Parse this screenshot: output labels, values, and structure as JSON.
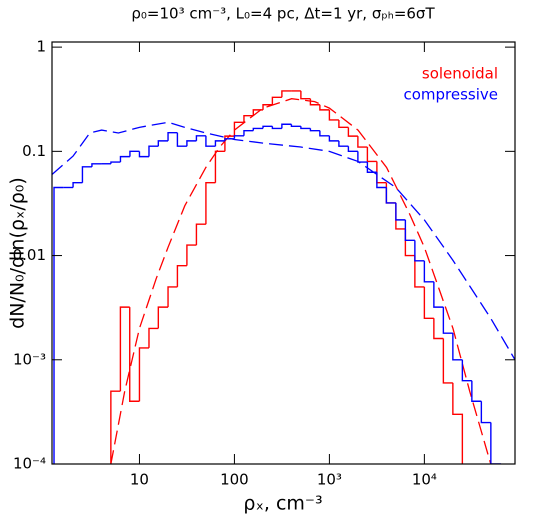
{
  "chart_data": {
    "type": "step-histogram",
    "title": "ρ₀=10³ cm⁻³,  L₀=4 pc,  Δt=1 yr,  σₚₕ=6σT",
    "x_label": "ρₓ, cm⁻³",
    "y_label": "dN/N₀/dln(ρₓ/ρ₀)",
    "log_x": true,
    "log_y": true,
    "xlim": [
      1.2,
      90000
    ],
    "ylim": [
      0.0001,
      1.12
    ],
    "xticks": [
      10,
      100,
      {
        "value": 1000,
        "label": "10³"
      },
      {
        "value": 10000,
        "label": "10⁴"
      }
    ],
    "yticks": [
      {
        "value": 0.0001,
        "label": "10⁻⁴"
      },
      {
        "value": 0.001,
        "label": "10⁻³"
      },
      0.01,
      0.1,
      1
    ],
    "legend": "top-right",
    "series": [
      {
        "name": "solenoidal",
        "color": "#ff0000",
        "bins": [
          5.0,
          6.3,
          7.9,
          10,
          12.6,
          15.8,
          20,
          25.1,
          31.6,
          39.8,
          50.1,
          63.1,
          79.4,
          100,
          126,
          158,
          200,
          251,
          316,
          398,
          501,
          631,
          794,
          1000,
          1259,
          1585,
          1995,
          2512,
          3162,
          3981,
          5012,
          6310,
          7943,
          10000,
          12589,
          15849,
          19953,
          25119
        ],
        "values": [
          0.0005,
          0.0032,
          0.0004,
          0.0013,
          0.002,
          0.0032,
          0.005,
          0.008,
          0.0126,
          0.02,
          0.05,
          0.1,
          0.14,
          0.19,
          0.22,
          0.25,
          0.28,
          0.33,
          0.38,
          0.38,
          0.32,
          0.28,
          0.25,
          0.2,
          0.17,
          0.14,
          0.11,
          0.08,
          0.05,
          0.032,
          0.018,
          0.01,
          0.005,
          0.0025,
          0.0016,
          0.0006,
          0.0003
        ],
        "fit": {
          "x": [
            5,
            7,
            10,
            15,
            20,
            30,
            50,
            70,
            100,
            200,
            400,
            700,
            1000,
            2000,
            4000,
            7000,
            10000,
            20000,
            30000,
            50000
          ],
          "values": [
            0.0001,
            0.0005,
            0.002,
            0.006,
            0.012,
            0.03,
            0.07,
            0.11,
            0.16,
            0.26,
            0.32,
            0.3,
            0.26,
            0.16,
            0.07,
            0.025,
            0.012,
            0.002,
            0.0005,
            0.0001
          ]
        }
      },
      {
        "name": "compressive",
        "color": "#0000ff",
        "bins": [
          1.26,
          1.58,
          2,
          2.51,
          3.16,
          3.98,
          5.01,
          6.31,
          7.94,
          10,
          12.6,
          15.8,
          20,
          25.1,
          31.6,
          39.8,
          50.1,
          63.1,
          79.4,
          100,
          126,
          158,
          200,
          251,
          316,
          398,
          501,
          631,
          794,
          1000,
          1259,
          1585,
          1995,
          2512,
          3162,
          3981,
          5012,
          6310,
          7943,
          10000,
          12589,
          15849,
          19953,
          25119,
          31623,
          39811,
          50119,
          63096
        ],
        "values": [
          0.045,
          0.045,
          0.05,
          0.071,
          0.076,
          0.076,
          0.079,
          0.089,
          0.1,
          0.089,
          0.112,
          0.126,
          0.151,
          0.112,
          0.126,
          0.141,
          0.112,
          0.126,
          0.132,
          0.141,
          0.158,
          0.166,
          0.174,
          0.166,
          0.182,
          0.174,
          0.166,
          0.158,
          0.141,
          0.126,
          0.112,
          0.1,
          0.079,
          0.063,
          0.045,
          0.032,
          0.022,
          0.014,
          0.0089,
          0.0056,
          0.0032,
          0.0018,
          0.001,
          0.00063,
          0.0004,
          0.00025,
          0.0001
        ],
        "fit": {
          "x": [
            1.2,
            2,
            3,
            4,
            6,
            10,
            20,
            30,
            50,
            100,
            200,
            500,
            1000,
            2000,
            5000,
            10000,
            20000,
            50000,
            90000
          ],
          "values": [
            0.06,
            0.09,
            0.15,
            0.16,
            0.15,
            0.17,
            0.19,
            0.17,
            0.15,
            0.13,
            0.12,
            0.11,
            0.1,
            0.08,
            0.045,
            0.022,
            0.009,
            0.0025,
            0.001
          ]
        }
      }
    ]
  }
}
